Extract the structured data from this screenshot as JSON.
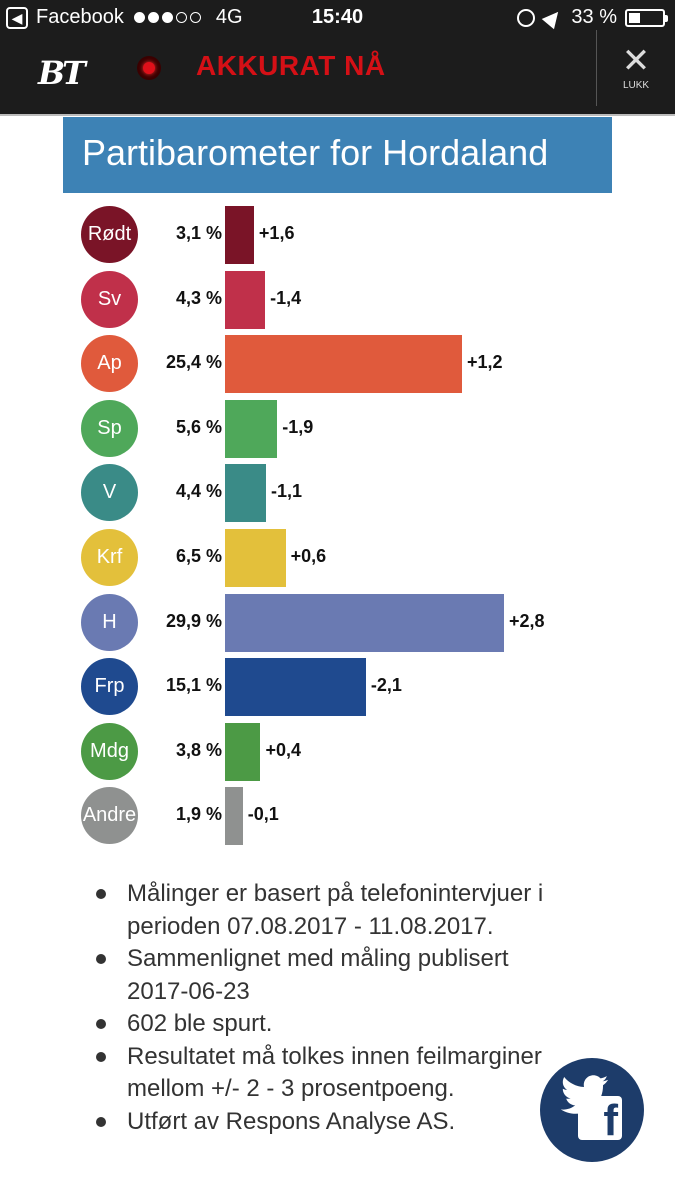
{
  "status_bar": {
    "back_label": "Facebook",
    "network": "4G",
    "time": "15:40",
    "battery": "33 %"
  },
  "header": {
    "logo": "BT",
    "section": "AKKURAT NÅ",
    "close_label": "LUKK",
    "close_icon": "✕"
  },
  "chart_data": {
    "type": "bar",
    "title": "Partibarometer for Hordaland",
    "categories": [
      "Rødt",
      "Sv",
      "Ap",
      "Sp",
      "V",
      "Krf",
      "H",
      "Frp",
      "Mdg",
      "Andre"
    ],
    "values": [
      3.1,
      4.3,
      25.4,
      5.6,
      4.4,
      6.5,
      29.9,
      15.1,
      3.8,
      1.9
    ],
    "value_labels": [
      "3,1 %",
      "4,3 %",
      "25,4 %",
      "5,6 %",
      "4,4 %",
      "6,5 %",
      "29,9 %",
      "15,1 %",
      "3,8 %",
      "1,9 %"
    ],
    "changes": [
      1.6,
      -1.4,
      1.2,
      -1.9,
      -1.1,
      0.6,
      2.8,
      -2.1,
      0.4,
      -0.1
    ],
    "change_labels": [
      "+1,6",
      "-1,4",
      "+1,2",
      "-1,9",
      "-1,1",
      "+0,6",
      "+2,8",
      "-2,1",
      "+0,4",
      "-0,1"
    ],
    "colors": [
      "#7a1427",
      "#c0304a",
      "#e05a3c",
      "#4fa85a",
      "#3a8b87",
      "#e3c03b",
      "#6a7ab2",
      "#1f4a8f",
      "#4c9a45",
      "#8f9190"
    ],
    "orientation": "horizontal",
    "xlim": [
      0,
      30
    ]
  },
  "notes": [
    "Målinger er basert på telefonintervjuer i perioden 07.08.2017 - 11.08.2017.",
    "Sammenlignet med måling publisert 2017-06-23",
    "602 ble spurt.",
    "Resultatet må tolkes innen feilmarginer mellom +/- 2 - 3 prosentpoeng.",
    "Utført av Respons Analyse AS."
  ],
  "share": {
    "twitter_icon": "twitter-icon",
    "facebook_icon": "facebook-icon",
    "facebook_glyph": "f"
  },
  "colors": {
    "banner": "#3d82b5",
    "header_bg": "#1c1c1c",
    "accent_red": "#d51016",
    "share_bg": "#1d3c6a"
  }
}
